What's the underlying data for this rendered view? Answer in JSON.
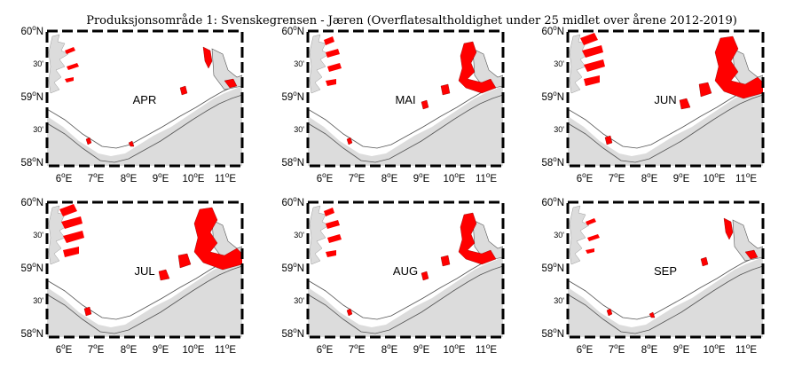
{
  "figure": {
    "title": "Produksjonsområde 1: Svenskegrensen - Jæren (Overflatesaltholdighet under 25 midlet over årene 2012-2019)"
  },
  "axes": {
    "lon_ticks": [
      {
        "deg": "6",
        "unit": "E"
      },
      {
        "deg": "7",
        "unit": "E"
      },
      {
        "deg": "8",
        "unit": "E"
      },
      {
        "deg": "9",
        "unit": "E"
      },
      {
        "deg": "10",
        "unit": "E"
      },
      {
        "deg": "11",
        "unit": "E"
      }
    ],
    "lat_ticks": [
      {
        "deg": "60",
        "unit": "N",
        "kind": "major"
      },
      {
        "deg": "30'",
        "unit": "",
        "kind": "minor"
      },
      {
        "deg": "59",
        "unit": "N",
        "kind": "major"
      },
      {
        "deg": "30'",
        "unit": "",
        "kind": "minor"
      },
      {
        "deg": "58",
        "unit": "N",
        "kind": "major"
      }
    ]
  },
  "colors": {
    "land": "#dcdcdc",
    "coastline": "#555555",
    "low_salinity": "#ff0000",
    "frame": "#000000",
    "background": "#ffffff"
  },
  "panels": [
    {
      "month": "APR",
      "coverage": "low"
    },
    {
      "month": "MAI",
      "coverage": "medium"
    },
    {
      "month": "JUN",
      "coverage": "high"
    },
    {
      "month": "JUL",
      "coverage": "high"
    },
    {
      "month": "AUG",
      "coverage": "medium"
    },
    {
      "month": "SEP",
      "coverage": "low"
    }
  ]
}
